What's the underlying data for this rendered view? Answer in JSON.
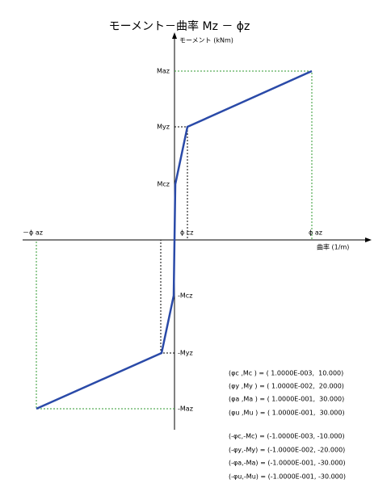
{
  "title": "モーメント－曲率 Mz － ϕz",
  "axes": {
    "y_label": "モーメント (kNm)",
    "x_label": "曲率 (1/m)"
  },
  "labels": {
    "maz": "Maz",
    "myz": "Myz",
    "mcz": "Mcz",
    "neg_phi_az": "－ϕ az",
    "phi_cz": "ϕ cz",
    "phi_az": "ϕ az",
    "neg_mcz": "-Mcz",
    "neg_myz": "-Myz",
    "neg_maz": "-Maz"
  },
  "results": {
    "positive": [
      "(φc ,Mc ) = ( 1.0000E-003,  10.000)",
      "(φy ,My ) = ( 1.0000E-002,  20.000)",
      "(φa ,Ma ) = ( 1.0000E-001,  30.000)",
      "(φu ,Mu ) = ( 1.0000E-001,  30.000)"
    ],
    "negative": [
      "(-φc,-Mc) = (-1.0000E-003, -10.000)",
      "(-φy,-My) = (-1.0000E-002, -20.000)",
      "(-φa,-Ma) = (-1.0000E-001, -30.000)",
      "(-φu,-Mu) = (-1.0000E-001, -30.000)"
    ]
  }
}
